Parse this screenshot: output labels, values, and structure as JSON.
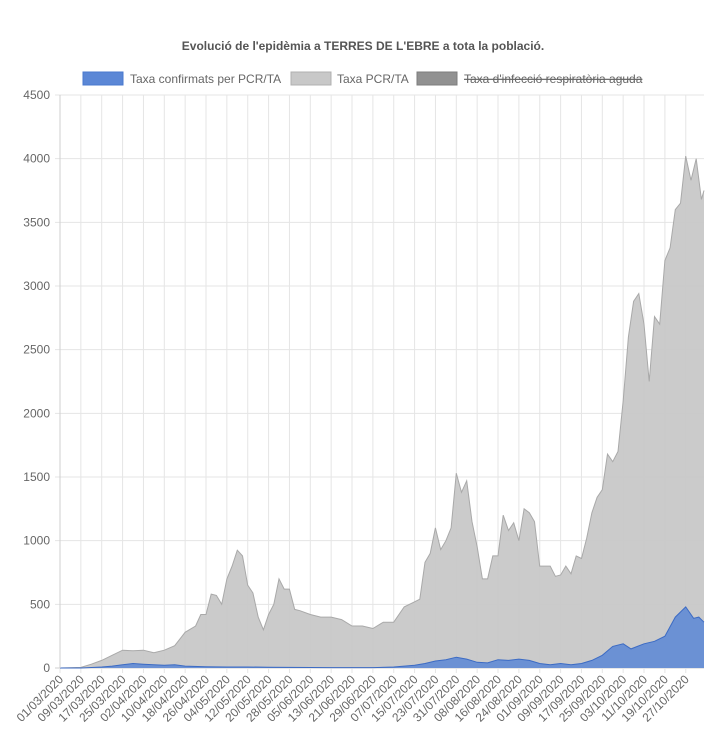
{
  "chart_data": {
    "type": "area",
    "title": "Evolució de l'epidèmia a TERRES DE L'EBRE a tota la població.",
    "xlabel": "",
    "ylabel": "",
    "ylim": [
      0,
      4500
    ],
    "yticks": [
      0,
      500,
      1000,
      1500,
      2000,
      2500,
      3000,
      3500,
      4000,
      4500
    ],
    "x_start": "01/03/2020",
    "x_end": "03/11/2020",
    "xticks": [
      "01/03/2020",
      "09/03/2020",
      "17/03/2020",
      "25/03/2020",
      "02/04/2020",
      "10/04/2020",
      "18/04/2020",
      "26/04/2020",
      "04/05/2020",
      "12/05/2020",
      "20/05/2020",
      "28/05/2020",
      "05/06/2020",
      "13/06/2020",
      "21/06/2020",
      "29/06/2020",
      "07/07/2020",
      "15/07/2020",
      "23/07/2020",
      "31/07/2020",
      "08/08/2020",
      "16/08/2020",
      "24/08/2020",
      "01/09/2020",
      "09/09/2020",
      "17/09/2020",
      "25/09/2020",
      "03/10/2020",
      "11/10/2020",
      "19/10/2020",
      "27/10/2020"
    ],
    "grid": true,
    "legend_position": "top",
    "series": [
      {
        "name": "Taxa confirmats per PCR/TA",
        "color": "#5b87d6",
        "hidden": false,
        "points": [
          [
            "01/03/2020",
            0
          ],
          [
            "09/03/2020",
            0
          ],
          [
            "17/03/2020",
            8
          ],
          [
            "21/03/2020",
            15
          ],
          [
            "25/03/2020",
            25
          ],
          [
            "29/03/2020",
            35
          ],
          [
            "02/04/2020",
            30
          ],
          [
            "06/04/2020",
            25
          ],
          [
            "10/04/2020",
            22
          ],
          [
            "14/04/2020",
            25
          ],
          [
            "18/04/2020",
            15
          ],
          [
            "26/04/2020",
            10
          ],
          [
            "04/05/2020",
            8
          ],
          [
            "12/05/2020",
            8
          ],
          [
            "20/05/2020",
            6
          ],
          [
            "28/05/2020",
            5
          ],
          [
            "05/06/2020",
            4
          ],
          [
            "13/06/2020",
            3
          ],
          [
            "21/06/2020",
            3
          ],
          [
            "29/06/2020",
            3
          ],
          [
            "07/07/2020",
            8
          ],
          [
            "11/07/2020",
            15
          ],
          [
            "15/07/2020",
            22
          ],
          [
            "19/07/2020",
            35
          ],
          [
            "23/07/2020",
            55
          ],
          [
            "27/07/2020",
            65
          ],
          [
            "31/07/2020",
            85
          ],
          [
            "04/08/2020",
            70
          ],
          [
            "08/08/2020",
            45
          ],
          [
            "12/08/2020",
            40
          ],
          [
            "16/08/2020",
            65
          ],
          [
            "20/08/2020",
            60
          ],
          [
            "24/08/2020",
            70
          ],
          [
            "28/08/2020",
            60
          ],
          [
            "01/09/2020",
            35
          ],
          [
            "05/09/2020",
            25
          ],
          [
            "09/09/2020",
            35
          ],
          [
            "13/09/2020",
            25
          ],
          [
            "17/09/2020",
            35
          ],
          [
            "21/09/2020",
            60
          ],
          [
            "25/09/2020",
            100
          ],
          [
            "29/09/2020",
            170
          ],
          [
            "03/10/2020",
            190
          ],
          [
            "06/10/2020",
            150
          ],
          [
            "11/10/2020",
            190
          ],
          [
            "15/10/2020",
            210
          ],
          [
            "19/10/2020",
            250
          ],
          [
            "23/10/2020",
            400
          ],
          [
            "27/10/2020",
            480
          ],
          [
            "30/10/2020",
            390
          ],
          [
            "01/11/2020",
            400
          ],
          [
            "03/11/2020",
            360
          ]
        ]
      },
      {
        "name": "Taxa PCR/TA",
        "color": "#c8c8c8",
        "hidden": false,
        "points": [
          [
            "01/03/2020",
            0
          ],
          [
            "09/03/2020",
            5
          ],
          [
            "13/03/2020",
            30
          ],
          [
            "17/03/2020",
            60
          ],
          [
            "21/03/2020",
            100
          ],
          [
            "25/03/2020",
            140
          ],
          [
            "29/03/2020",
            135
          ],
          [
            "02/04/2020",
            140
          ],
          [
            "06/04/2020",
            120
          ],
          [
            "10/04/2020",
            140
          ],
          [
            "14/04/2020",
            175
          ],
          [
            "18/04/2020",
            280
          ],
          [
            "22/04/2020",
            330
          ],
          [
            "24/04/2020",
            420
          ],
          [
            "26/04/2020",
            420
          ],
          [
            "28/04/2020",
            580
          ],
          [
            "30/04/2020",
            570
          ],
          [
            "02/05/2020",
            500
          ],
          [
            "04/05/2020",
            700
          ],
          [
            "06/05/2020",
            800
          ],
          [
            "08/05/2020",
            925
          ],
          [
            "10/05/2020",
            880
          ],
          [
            "12/05/2020",
            650
          ],
          [
            "14/05/2020",
            590
          ],
          [
            "16/05/2020",
            400
          ],
          [
            "18/05/2020",
            300
          ],
          [
            "20/05/2020",
            420
          ],
          [
            "22/05/2020",
            500
          ],
          [
            "24/05/2020",
            700
          ],
          [
            "26/05/2020",
            620
          ],
          [
            "28/05/2020",
            620
          ],
          [
            "30/05/2020",
            460
          ],
          [
            "01/06/2020",
            450
          ],
          [
            "05/06/2020",
            420
          ],
          [
            "09/06/2020",
            400
          ],
          [
            "13/06/2020",
            400
          ],
          [
            "17/06/2020",
            380
          ],
          [
            "21/06/2020",
            330
          ],
          [
            "25/06/2020",
            330
          ],
          [
            "29/06/2020",
            310
          ],
          [
            "03/07/2020",
            360
          ],
          [
            "07/07/2020",
            360
          ],
          [
            "11/07/2020",
            480
          ],
          [
            "15/07/2020",
            520
          ],
          [
            "17/07/2020",
            540
          ],
          [
            "19/07/2020",
            830
          ],
          [
            "21/07/2020",
            900
          ],
          [
            "23/07/2020",
            1100
          ],
          [
            "25/07/2020",
            930
          ],
          [
            "27/07/2020",
            1000
          ],
          [
            "29/07/2020",
            1100
          ],
          [
            "31/07/2020",
            1530
          ],
          [
            "02/08/2020",
            1380
          ],
          [
            "04/08/2020",
            1470
          ],
          [
            "06/08/2020",
            1150
          ],
          [
            "08/08/2020",
            950
          ],
          [
            "10/08/2020",
            700
          ],
          [
            "12/08/2020",
            700
          ],
          [
            "14/08/2020",
            880
          ],
          [
            "16/08/2020",
            880
          ],
          [
            "18/08/2020",
            1200
          ],
          [
            "20/08/2020",
            1080
          ],
          [
            "22/08/2020",
            1140
          ],
          [
            "24/08/2020",
            1000
          ],
          [
            "26/08/2020",
            1250
          ],
          [
            "28/08/2020",
            1220
          ],
          [
            "30/08/2020",
            1150
          ],
          [
            "01/09/2020",
            800
          ],
          [
            "03/09/2020",
            800
          ],
          [
            "05/09/2020",
            800
          ],
          [
            "07/09/2020",
            720
          ],
          [
            "09/09/2020",
            730
          ],
          [
            "11/09/2020",
            800
          ],
          [
            "13/09/2020",
            740
          ],
          [
            "15/09/2020",
            880
          ],
          [
            "17/09/2020",
            860
          ],
          [
            "19/09/2020",
            1020
          ],
          [
            "21/09/2020",
            1220
          ],
          [
            "23/09/2020",
            1340
          ],
          [
            "25/09/2020",
            1400
          ],
          [
            "27/09/2020",
            1680
          ],
          [
            "29/09/2020",
            1620
          ],
          [
            "01/10/2020",
            1700
          ],
          [
            "03/10/2020",
            2100
          ],
          [
            "05/10/2020",
            2600
          ],
          [
            "07/10/2020",
            2880
          ],
          [
            "09/10/2020",
            2940
          ],
          [
            "11/10/2020",
            2700
          ],
          [
            "13/10/2020",
            2250
          ],
          [
            "15/10/2020",
            2760
          ],
          [
            "17/10/2020",
            2700
          ],
          [
            "19/10/2020",
            3200
          ],
          [
            "21/10/2020",
            3300
          ],
          [
            "23/10/2020",
            3600
          ],
          [
            "25/10/2020",
            3650
          ],
          [
            "27/10/2020",
            4020
          ],
          [
            "29/10/2020",
            3830
          ],
          [
            "31/10/2020",
            4000
          ],
          [
            "02/11/2020",
            3680
          ],
          [
            "03/11/2020",
            3750
          ]
        ]
      },
      {
        "name": "Taxa d'infecció respiratòria aguda",
        "color": "#919191",
        "hidden": true,
        "points": []
      }
    ]
  }
}
